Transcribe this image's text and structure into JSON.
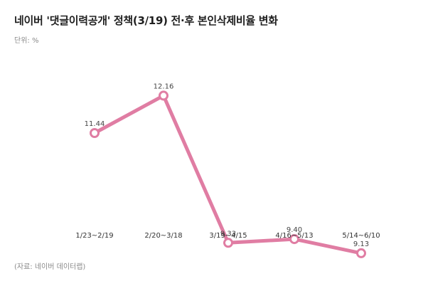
{
  "header": {
    "title": "네이버 '댓글이력공개' 정책(3/19) 전·후 본인삭제비율 변화",
    "unit": "단위: %"
  },
  "footer": {
    "source": "(자료: 네이버 데이터랩)"
  },
  "chart_data": {
    "type": "line",
    "categories": [
      "1/23~2/19",
      "2/20~3/18",
      "3/19~4/15",
      "4/16~5/13",
      "5/14~6/10"
    ],
    "series": [
      {
        "values": [
          11.44,
          12.16,
          9.33,
          9.4,
          9.13
        ]
      }
    ],
    "data_labels": [
      "11.44",
      "12.16",
      "9.33",
      "9.40",
      "9.13"
    ],
    "ylim": [
      8.8,
      13.0
    ],
    "grid": false,
    "legend": "none",
    "line_color": "#e07da3",
    "marker_fill": "#ffffff"
  }
}
